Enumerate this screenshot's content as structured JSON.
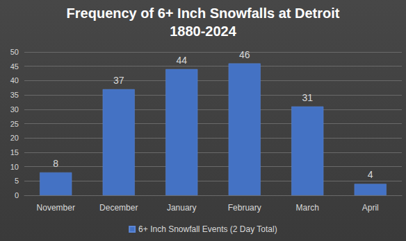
{
  "chart_data": {
    "type": "bar",
    "title": "Frequency of 6+ Inch Snowfalls at Detroit",
    "subtitle": "1880-2024",
    "categories": [
      "November",
      "December",
      "January",
      "February",
      "March",
      "April"
    ],
    "series": [
      {
        "name": "6+ Inch Snowfall Events (2 Day Total)",
        "color": "#4472c4",
        "values": [
          8,
          37,
          44,
          46,
          31,
          4
        ]
      }
    ],
    "ylim": [
      0,
      50
    ],
    "yticks": [
      0,
      5,
      10,
      15,
      20,
      25,
      30,
      35,
      40,
      45,
      50
    ],
    "grid": true,
    "legend": "bottom",
    "data_labels": true
  }
}
